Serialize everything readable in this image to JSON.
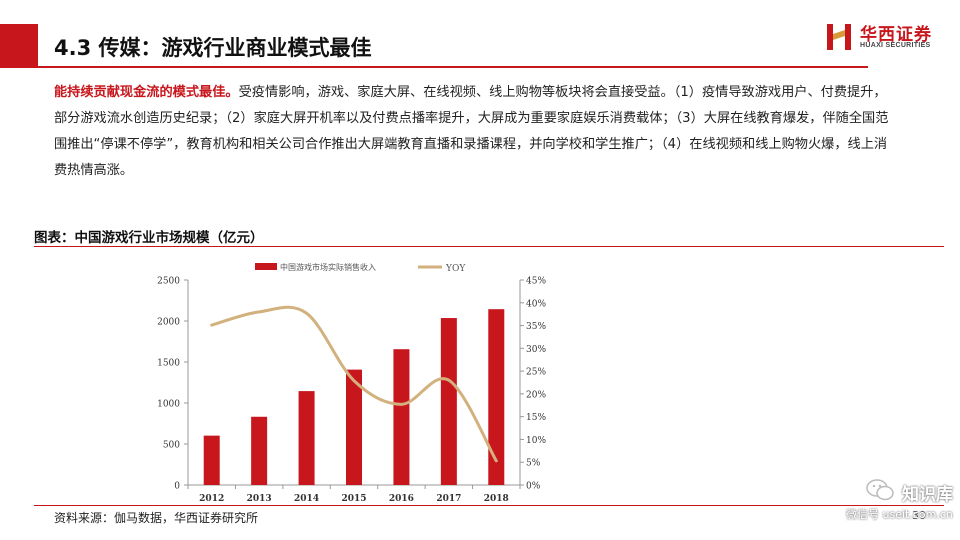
{
  "header": {
    "title": "4.3 传媒：游戏行业商业模式最佳",
    "logo_cn": "华西证券",
    "logo_en": "HUAXI SECURITIES"
  },
  "body": {
    "highlight": "能持续贡献现金流的模式最佳。",
    "text": "受疫情影响，游戏、家庭大屏、在线视频、线上购物等板块将会直接受益。（1）疫情导致游戏用户、付费提升，部分游戏流水创造历史纪录；（2）家庭大屏开机率以及付费点播率提升，大屏成为重要家庭娱乐消费载体；（3）大屏在线教育爆发，伴随全国范围推出“停课不停学”，教育机构和相关公司合作推出大屏端教育直播和录播课程，并向学校和学生推广；（4）在线视频和线上购物火爆，线上消费热情高涨。"
  },
  "chart_title": "图表：中国游戏行业市场规模（亿元）",
  "chart_data": {
    "type": "bar",
    "categories": [
      "2012",
      "2013",
      "2014",
      "2015",
      "2016",
      "2017",
      "2018"
    ],
    "series": [
      {
        "name": "中国游戏市场实际销售收入",
        "type": "bar",
        "axis": "left",
        "values": [
          602,
          832,
          1145,
          1407,
          1656,
          2036,
          2144
        ]
      },
      {
        "name": "YOY",
        "type": "line",
        "axis": "right",
        "values": [
          35.1,
          38.0,
          37.7,
          22.9,
          17.7,
          23.0,
          5.3
        ]
      }
    ],
    "ylim_left": [
      0,
      2500
    ],
    "yticks_left": [
      "0",
      "500",
      "1000",
      "1500",
      "2000",
      "2500"
    ],
    "ylim_right": [
      0,
      45
    ],
    "yticks_right": [
      "0%",
      "5%",
      "10%",
      "15%",
      "20%",
      "25%",
      "30%",
      "35%",
      "40%",
      "45%"
    ],
    "legend_position": "top-center",
    "colors": {
      "bar": "#c8161d",
      "line": "#d2b17e"
    }
  },
  "footer": {
    "source": "资料来源：伽马数据，华西证券研究所",
    "page": "30"
  },
  "watermark": {
    "main": "知识库",
    "sub": "微信号 useit.com.cn"
  }
}
